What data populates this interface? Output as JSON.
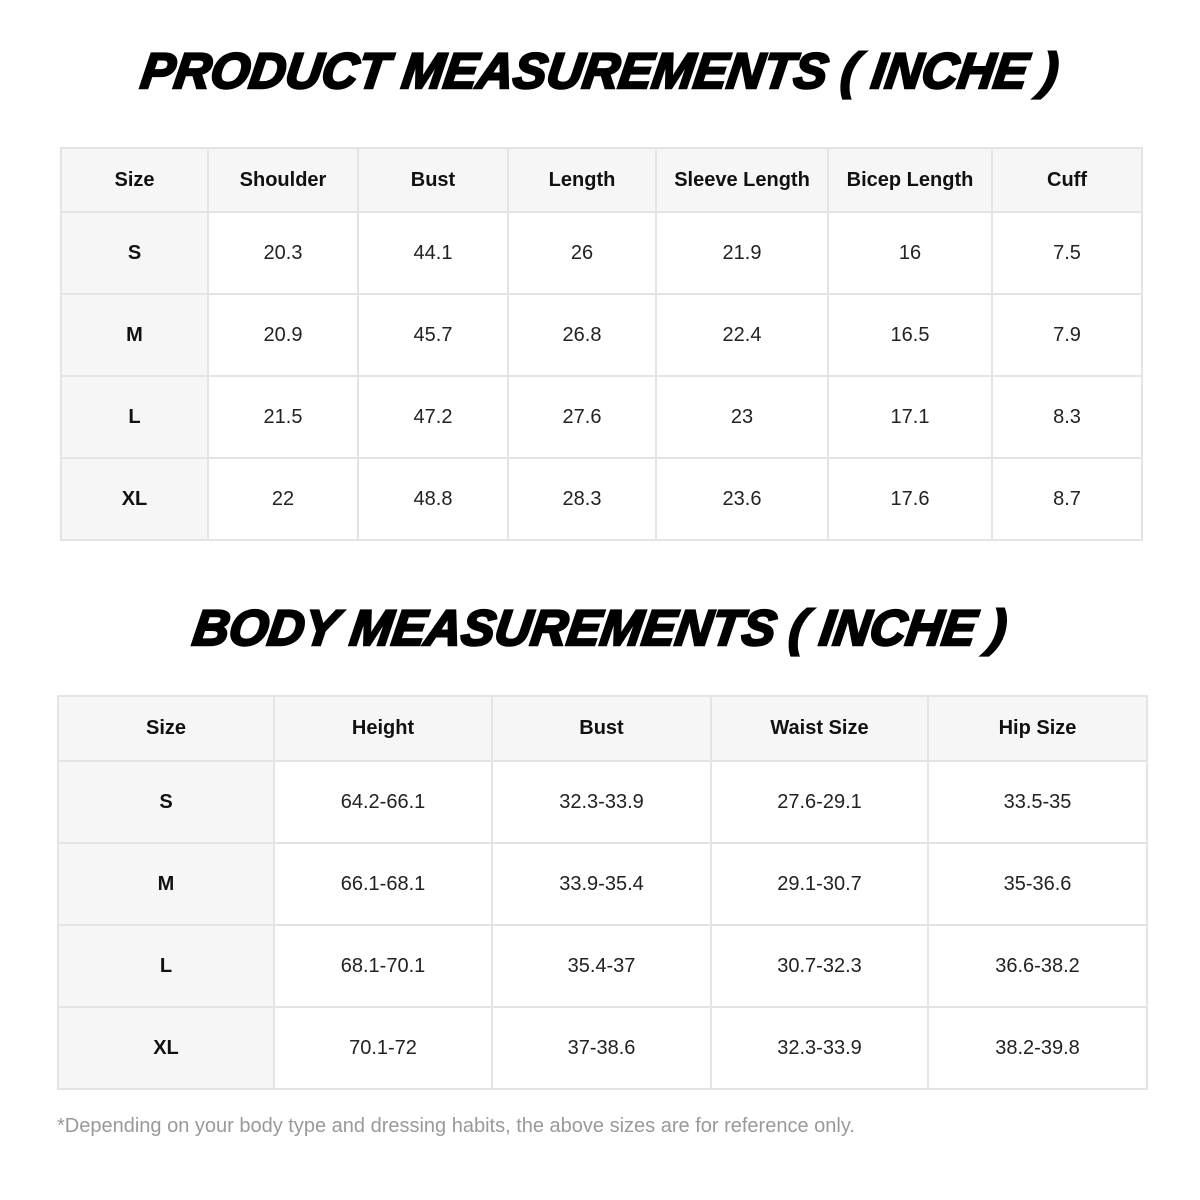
{
  "product": {
    "title": "PRODUCT MEASUREMENTS ( INCHE )",
    "headers": [
      "Size",
      "Shoulder",
      "Bust",
      "Length",
      "Sleeve Length",
      "Bicep Length",
      "Cuff"
    ],
    "rows": [
      [
        "S",
        "20.3",
        "44.1",
        "26",
        "21.9",
        "16",
        "7.5"
      ],
      [
        "M",
        "20.9",
        "45.7",
        "26.8",
        "22.4",
        "16.5",
        "7.9"
      ],
      [
        "L",
        "21.5",
        "47.2",
        "27.6",
        "23",
        "17.1",
        "8.3"
      ],
      [
        "XL",
        "22",
        "48.8",
        "28.3",
        "23.6",
        "17.6",
        "8.7"
      ]
    ]
  },
  "body": {
    "title": "BODY MEASUREMENTS ( INCHE )",
    "headers": [
      "Size",
      "Height",
      "Bust",
      "Waist Size",
      "Hip Size"
    ],
    "rows": [
      [
        "S",
        "64.2-66.1",
        "32.3-33.9",
        "27.6-29.1",
        "33.5-35"
      ],
      [
        "M",
        "66.1-68.1",
        "33.9-35.4",
        "29.1-30.7",
        "35-36.6"
      ],
      [
        "L",
        "68.1-70.1",
        "35.4-37",
        "30.7-32.3",
        "36.6-38.2"
      ],
      [
        "XL",
        "70.1-72",
        "37-38.6",
        "32.3-33.9",
        "38.2-39.8"
      ]
    ]
  },
  "note": "*Depending on your body type and dressing habits, the above sizes are for reference only."
}
